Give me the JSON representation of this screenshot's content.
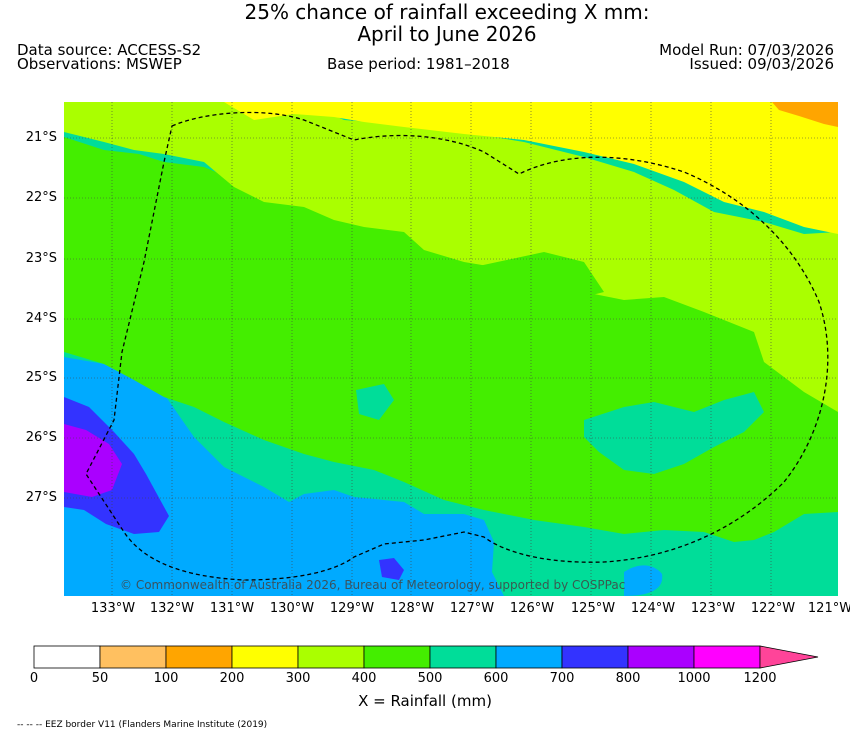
{
  "title_line1": "25% chance of rainfall exceeding X mm:",
  "title_line2": "April to June 2026",
  "data_source": "Data source: ACCESS-S2",
  "observations": "Observations: MSWEP",
  "base_period": "Base period: 1981–2018",
  "model_run": "Model Run: 07/03/2026",
  "issued": "Issued: 09/03/2026",
  "copyright": "© Commonwealth of Australia 2026, Bureau of Meteorology, supported by COSPPac",
  "x_label": "X = Rainfall (mm)",
  "eez_note": "-- -- -- EEZ border V11 (Flanders Marine Institute (2019)",
  "lat_labels": [
    "21°S",
    "22°S",
    "23°S",
    "24°S",
    "25°S",
    "26°S",
    "27°S"
  ],
  "lon_labels": [
    "133°W",
    "132°W",
    "131°W",
    "130°W",
    "129°W",
    "128°W",
    "127°W",
    "126°W",
    "125°W",
    "124°W",
    "123°W",
    "122°W",
    "121°W"
  ],
  "colorbar": {
    "ticks": [
      "0",
      "50",
      "100",
      "200",
      "300",
      "400",
      "500",
      "600",
      "700",
      "800",
      "1000",
      "1200"
    ],
    "colors": [
      "#ffffff",
      "#ffc060",
      "#ffa500",
      "#ffff00",
      "#aaff00",
      "#44ee00",
      "#00dd99",
      "#00aaff",
      "#3333ff",
      "#aa00ff",
      "#ff00ff",
      "#ff4499"
    ]
  },
  "colors": {
    "lt300": "#ffff00",
    "r300": "#aaff00",
    "r400": "#44ee00",
    "r500": "#00dd99",
    "r600": "#00aaff",
    "r700": "#3333ff",
    "r800": "#aa00ff",
    "orange": "#ffa500"
  }
}
